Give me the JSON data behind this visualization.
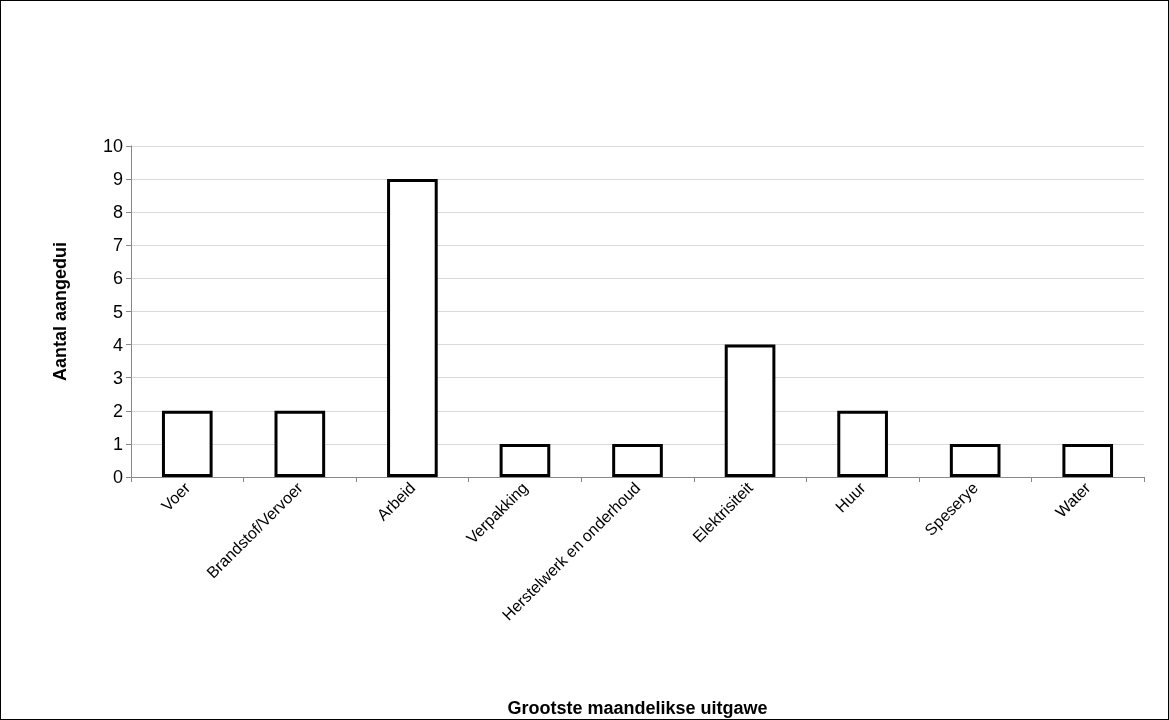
{
  "chart_data": {
    "type": "bar",
    "xlabel": "Grootste maandelikse uitgawe",
    "ylabel": "Aantal aangedui",
    "categories": [
      "Voer",
      "Brandstof/Vervoer",
      "Arbeid",
      "Verpakking",
      "Herstelwerk en onderhoud",
      "Elektrisiteit",
      "Huur",
      "Speserye",
      "Water"
    ],
    "values": [
      2,
      2,
      9,
      1,
      1,
      4,
      2,
      1,
      1
    ],
    "color": "#ffffff",
    "ylim": [
      0,
      10
    ],
    "yticks": [
      0,
      1,
      2,
      3,
      4,
      5,
      6,
      7,
      8,
      9,
      10
    ],
    "grid": "y"
  }
}
